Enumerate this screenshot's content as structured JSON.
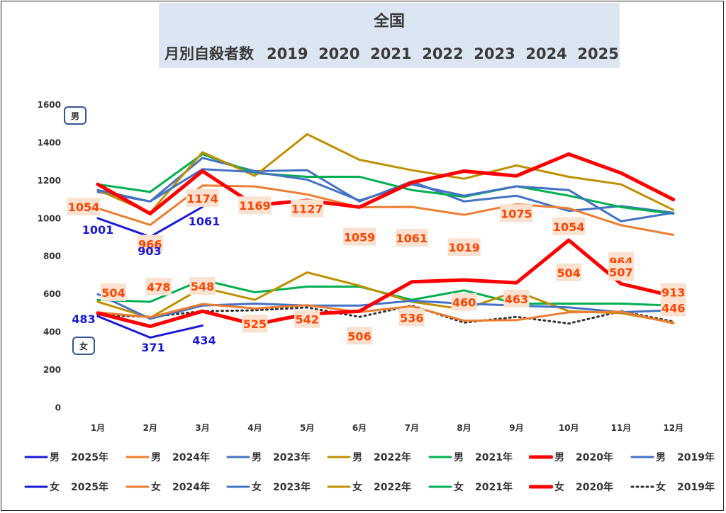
{
  "title": {
    "main": "全国",
    "sub": "月別自殺者数",
    "years": "2019  2020  2021  2022  2023  2024  2025"
  },
  "chart_data": {
    "type": "line",
    "categories": [
      "1月",
      "2月",
      "3月",
      "4月",
      "5月",
      "6月",
      "7月",
      "8月",
      "9月",
      "10月",
      "11月",
      "12月"
    ],
    "ylim": [
      0,
      1600
    ],
    "yticks": [
      0,
      200,
      400,
      600,
      800,
      1000,
      1200,
      1400,
      1600
    ],
    "grid": false,
    "group_labels": {
      "male": "男",
      "female": "女"
    },
    "series": [
      {
        "name": "男 2019年",
        "sex": "男",
        "year": "2019年",
        "color": "#4472c4",
        "width": 3,
        "dash": "",
        "values": [
          1140,
          1090,
          1320,
          1250,
          1255,
          1090,
          1195,
          1090,
          1120,
          1040,
          1065,
          1030
        ]
      },
      {
        "name": "男 2020年",
        "sex": "男",
        "year": "2020年",
        "color": "#ff0000",
        "width": 5,
        "dash": "",
        "values": [
          1180,
          1025,
          1250,
          1070,
          1095,
          1060,
          1190,
          1250,
          1225,
          1340,
          1240,
          1100
        ]
      },
      {
        "name": "男 2021年",
        "sex": "男",
        "year": "2021年",
        "color": "#00b050",
        "width": 3,
        "dash": "",
        "values": [
          1180,
          1140,
          1340,
          1240,
          1220,
          1220,
          1150,
          1115,
          1170,
          1120,
          1060,
          1025
        ]
      },
      {
        "name": "男 2022年",
        "sex": "男",
        "year": "2022年",
        "color": "#bf9000",
        "width": 3,
        "dash": "",
        "values": [
          1150,
          1030,
          1350,
          1225,
          1445,
          1310,
          1255,
          1210,
          1280,
          1220,
          1180,
          1045
        ]
      },
      {
        "name": "男 2023年",
        "sex": "男",
        "year": "2023年",
        "color": "#4472c4",
        "width": 3,
        "dash": "",
        "values": [
          1150,
          1090,
          1260,
          1245,
          1205,
          1095,
          1180,
          1120,
          1170,
          1150,
          985,
          1030
        ]
      },
      {
        "name": "男 2024年",
        "sex": "男",
        "year": "2024年",
        "color": "#ed7d31",
        "width": 3,
        "dash": "",
        "values": [
          1054,
          966,
          1174,
          1169,
          1127,
          1059,
          1061,
          1019,
          1075,
          1054,
          964,
          913
        ]
      },
      {
        "name": "男 2025年",
        "sex": "男",
        "year": "2025年",
        "color": "#1a1ad6",
        "width": 3,
        "dash": "",
        "values": [
          1001,
          903,
          1061,
          null,
          null,
          null,
          null,
          null,
          null,
          null,
          null,
          null
        ]
      },
      {
        "name": "女 2019年",
        "sex": "女",
        "year": "2019年",
        "color": "#333333",
        "width": 3,
        "dash": "2,5",
        "values": [
          490,
          480,
          510,
          515,
          530,
          480,
          540,
          450,
          480,
          445,
          510,
          455
        ]
      },
      {
        "name": "女 2020年",
        "sex": "女",
        "year": "2020年",
        "color": "#ff0000",
        "width": 5,
        "dash": "",
        "values": [
          500,
          430,
          510,
          440,
          495,
          510,
          665,
          675,
          660,
          885,
          655,
          590
        ]
      },
      {
        "name": "女 2021年",
        "sex": "女",
        "year": "2021年",
        "color": "#00b050",
        "width": 3,
        "dash": "",
        "values": [
          570,
          560,
          675,
          610,
          640,
          640,
          570,
          620,
          550,
          550,
          550,
          540
        ]
      },
      {
        "name": "女 2022年",
        "sex": "女",
        "year": "2022年",
        "color": "#bf9000",
        "width": 3,
        "dash": "",
        "values": [
          560,
          475,
          635,
          570,
          715,
          645,
          560,
          520,
          615,
          510,
          500,
          450
        ]
      },
      {
        "name": "女 2023年",
        "sex": "女",
        "year": "2023年",
        "color": "#4472c4",
        "width": 3,
        "dash": "",
        "values": [
          600,
          470,
          540,
          550,
          540,
          540,
          565,
          550,
          540,
          530,
          505,
          515
        ]
      },
      {
        "name": "女 2024年",
        "sex": "女",
        "year": "2024年",
        "color": "#ed7d31",
        "width": 3,
        "dash": "",
        "values": [
          504,
          478,
          548,
          525,
          542,
          506,
          536,
          460,
          463,
          504,
          507,
          446
        ]
      },
      {
        "name": "女 2025年",
        "sex": "女",
        "year": "2025年",
        "color": "#1a1ad6",
        "width": 3,
        "dash": "",
        "values": [
          483,
          371,
          434,
          null,
          null,
          null,
          null,
          null,
          null,
          null,
          null,
          null
        ]
      }
    ],
    "labels_2024_male": [
      "1054",
      "966",
      "1174",
      "1169",
      "1127",
      "1059",
      "1061",
      "1019",
      "1075",
      "1054",
      "964",
      "913"
    ],
    "labels_2024_female": [
      "504",
      "478",
      "548",
      "525",
      "542",
      "506",
      "536",
      "460",
      "463",
      "504",
      "507",
      "446"
    ],
    "labels_2025_male": [
      "1001",
      "903",
      "1061"
    ],
    "labels_2025_female": [
      "483",
      "371",
      "434"
    ],
    "legend": [
      [
        "男 2025年",
        "男 2024年",
        "男 2023年",
        "男 2022年",
        "男 2021年",
        "男 2020年",
        "男 2019年"
      ],
      [
        "女 2025年",
        "女 2024年",
        "女 2023年",
        "女 2022年",
        "女 2021年",
        "女 2020年",
        "女 2019年"
      ]
    ]
  }
}
